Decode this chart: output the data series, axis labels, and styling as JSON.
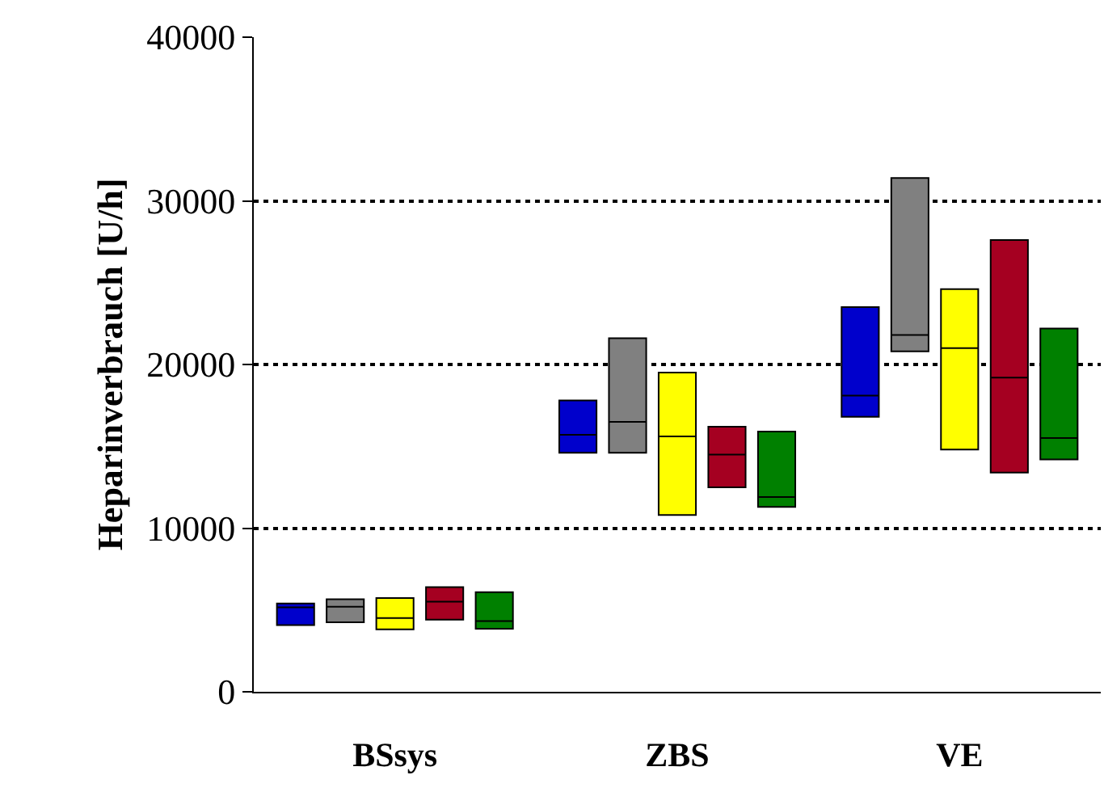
{
  "chart_data": {
    "type": "box",
    "ylabel": "Heparinverbrauch [U/h]",
    "categories": [
      "BSsys",
      "ZBS",
      "VE"
    ],
    "ylim": [
      0,
      40000
    ],
    "yticks": [
      0,
      10000,
      20000,
      30000,
      40000
    ],
    "grid": "y",
    "series": [
      {
        "color": "#0000cc",
        "boxes": [
          {
            "low": 4080,
            "q1": 4080,
            "median": 5160,
            "q3": 5400,
            "high": 5400
          },
          {
            "low": 14600,
            "q1": 14600,
            "median": 15700,
            "q3": 17800,
            "high": 17800
          },
          {
            "low": 16800,
            "q1": 16800,
            "median": 18100,
            "q3": 23500,
            "high": 23500
          }
        ]
      },
      {
        "color": "#808080",
        "boxes": [
          {
            "low": 4250,
            "q1": 4250,
            "median": 5200,
            "q3": 5660,
            "high": 5660
          },
          {
            "low": 14600,
            "q1": 14600,
            "median": 16500,
            "q3": 21600,
            "high": 21600
          },
          {
            "low": 20800,
            "q1": 20800,
            "median": 21800,
            "q3": 31400,
            "high": 31400
          }
        ]
      },
      {
        "color": "#ffff00",
        "boxes": [
          {
            "low": 3820,
            "q1": 3820,
            "median": 4510,
            "q3": 5730,
            "high": 5730
          },
          {
            "low": 10800,
            "q1": 10800,
            "median": 15600,
            "q3": 19500,
            "high": 19500
          },
          {
            "low": 14800,
            "q1": 14800,
            "median": 21000,
            "q3": 24600,
            "high": 24600
          }
        ]
      },
      {
        "color": "#a50021",
        "boxes": [
          {
            "low": 4410,
            "q1": 4410,
            "median": 5500,
            "q3": 6390,
            "high": 6390
          },
          {
            "low": 12500,
            "q1": 12500,
            "median": 14500,
            "q3": 16200,
            "high": 16200
          },
          {
            "low": 13400,
            "q1": 13400,
            "median": 19200,
            "q3": 27600,
            "high": 27600
          }
        ]
      },
      {
        "color": "#008000",
        "boxes": [
          {
            "low": 3850,
            "q1": 3850,
            "median": 4320,
            "q3": 6090,
            "high": 6090
          },
          {
            "low": 11300,
            "q1": 11300,
            "median": 11900,
            "q3": 15900,
            "high": 15900
          },
          {
            "low": 14200,
            "q1": 14200,
            "median": 15500,
            "q3": 22200,
            "high": 22200
          }
        ]
      }
    ]
  }
}
